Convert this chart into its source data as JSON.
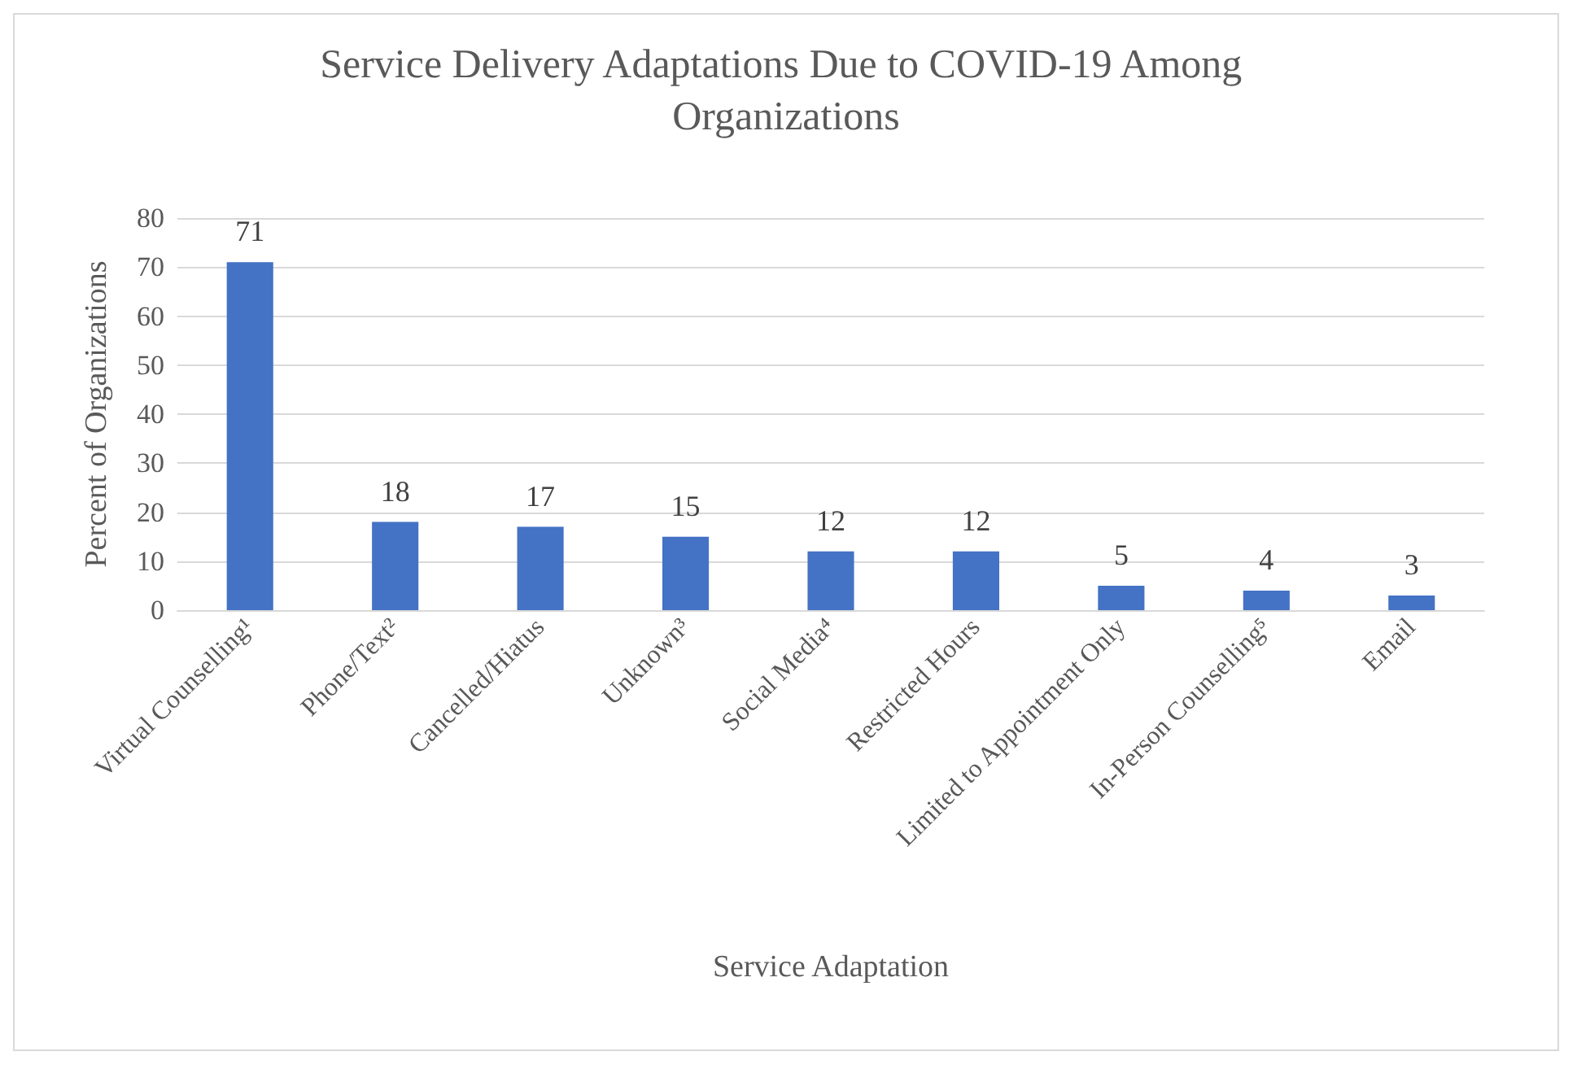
{
  "chart_data": {
    "type": "bar",
    "title": "Service Delivery Adaptations Due to COVID-19 Among Organizations",
    "xlabel": "Service Adaptation",
    "ylabel": "Percent of Organizations",
    "categories": [
      "Virtual Counselling¹",
      "Phone/Text²",
      "Cancelled/Hiatus",
      "Unknown³",
      "Social Media⁴",
      "Restricted Hours",
      "Limited to Appointment Only",
      "In-Person Counselling⁵",
      "Email"
    ],
    "values": [
      71,
      18,
      17,
      15,
      12,
      12,
      5,
      4,
      3
    ],
    "color": "#4472c4",
    "ylim": [
      0,
      80
    ],
    "yticks": [
      0,
      10,
      20,
      30,
      40,
      50,
      60,
      70,
      80
    ],
    "grid": "y",
    "data_labels": true
  }
}
